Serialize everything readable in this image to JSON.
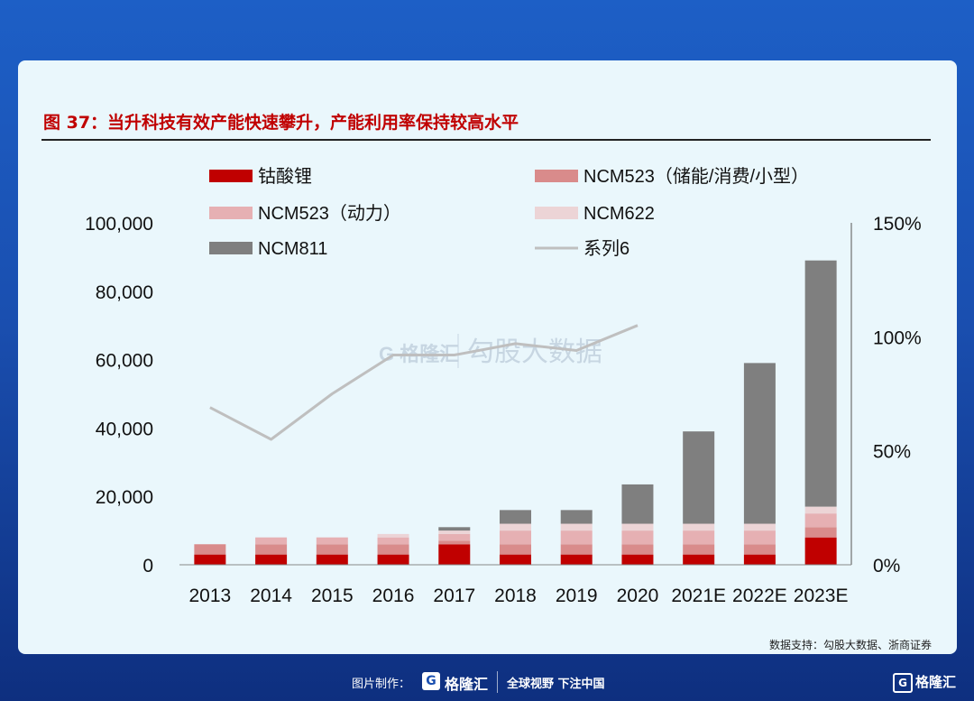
{
  "title": "图 37：当升科技有效产能快速攀升，产能利用率保持较高水平",
  "source": "数据支持：勾股大数据、浙商证券",
  "watermark": {
    "brand": "格隆汇",
    "text": "勾股大数据"
  },
  "footer": {
    "made_by": "图片制作：",
    "brand": "格隆汇",
    "slogan": "全球视野 下注中国"
  },
  "corner_logo": {
    "mark": "G",
    "text": "格隆汇"
  },
  "colors": {
    "licoo2": "#c00000",
    "ncm523_storage": "#d98b8b",
    "ncm523_power": "#e6b0b3",
    "ncm622": "#ecd4d6",
    "ncm811": "#7f7f7f",
    "series6": "#bfbfbf"
  },
  "chart_data": {
    "type": "bar",
    "stacked": true,
    "categories": [
      "2013",
      "2014",
      "2015",
      "2016",
      "2017",
      "2018",
      "2019",
      "2020",
      "2021E",
      "2022E",
      "2023E"
    ],
    "series": [
      {
        "name": "钴酸锂",
        "values": [
          3000,
          3000,
          3000,
          3000,
          6000,
          3000,
          3000,
          3000,
          3000,
          3000,
          8000
        ]
      },
      {
        "name": "NCM523（储能/消费/小型）",
        "values": [
          3000,
          3000,
          3000,
          3000,
          1000,
          3000,
          3000,
          3000,
          3000,
          3000,
          3000
        ]
      },
      {
        "name": "NCM523（动力）",
        "values": [
          0,
          2000,
          2000,
          2000,
          2000,
          4000,
          4000,
          4000,
          4000,
          4000,
          4000
        ]
      },
      {
        "name": "NCM622",
        "values": [
          0,
          0,
          0,
          1000,
          1000,
          2000,
          2000,
          2000,
          2000,
          2000,
          2000
        ]
      },
      {
        "name": "NCM811",
        "values": [
          0,
          0,
          0,
          0,
          1000,
          4000,
          4000,
          11500,
          27000,
          47000,
          72000
        ]
      },
      {
        "name": "系列6",
        "type": "line",
        "axis": "right",
        "values": [
          69,
          55,
          75,
          92,
          92,
          97,
          94,
          105,
          null,
          null,
          null
        ]
      }
    ],
    "left_axis": {
      "ylim": [
        0,
        100000
      ],
      "ticks": [
        "0",
        "20,000",
        "40,000",
        "60,000",
        "80,000",
        "100,000"
      ]
    },
    "right_axis": {
      "ylim": [
        0,
        150
      ],
      "ticks": [
        "0%",
        "50%",
        "100%",
        "150%"
      ]
    },
    "legend_position": "top"
  }
}
